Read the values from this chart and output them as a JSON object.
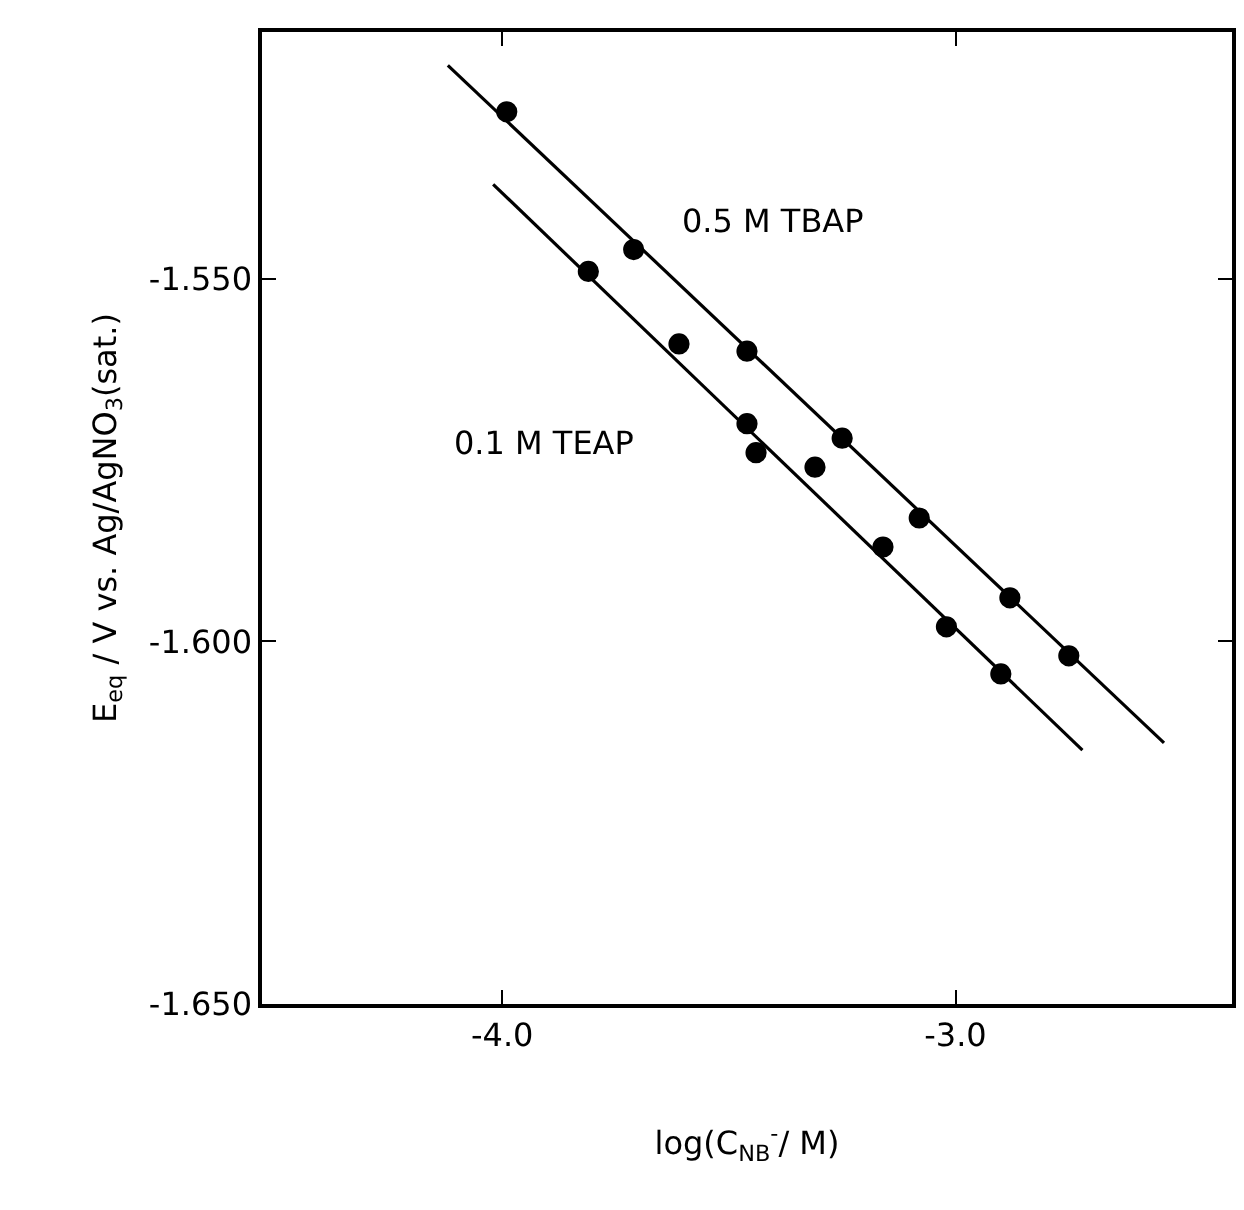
{
  "chart_data": {
    "type": "scatter",
    "xlabel": "log(C$_{NB}$$^{-}$/ M)",
    "ylabel": "E$_{eq}$ / V vs. Ag/AgNO$_{3}$(sat.)",
    "xlim": [
      -4.53,
      -2.39
    ],
    "ylim": [
      -1.65,
      -1.516
    ],
    "xticks": [
      {
        "value": -4,
        "label": "-4.0"
      },
      {
        "value": -3,
        "label": "-3.0"
      }
    ],
    "yticks": [
      {
        "value": -1.55,
        "label": "-1.550"
      },
      {
        "value": -1.6,
        "label": "-1.600"
      },
      {
        "value": -1.65,
        "label": "-1.650"
      }
    ],
    "grid": false,
    "legend": false,
    "series": [
      {
        "name": "0.5 M TBAP",
        "color": "#000000",
        "marker": "circle",
        "x": [
          -3.99,
          -3.71,
          -3.46,
          -3.25,
          -3.08,
          -2.88,
          -2.75
        ],
        "values": [
          -1.527,
          -1.546,
          -1.56,
          -1.572,
          -1.583,
          -1.594,
          -1.602
        ]
      },
      {
        "name": "0.1 M TEAP",
        "color": "#000000",
        "marker": "circle",
        "x": [
          -3.81,
          -3.61,
          -3.46,
          -3.44,
          -3.31,
          -3.16,
          -3.02,
          -2.9
        ],
        "values": [
          -1.549,
          -1.559,
          -1.57,
          -1.574,
          -1.576,
          -1.587,
          -1.598,
          -1.6045
        ]
      },
      {
        "type": "line",
        "color": "#000000",
        "marker": "none",
        "x": [
          -4.12,
          -2.54
        ],
        "values": [
          -1.5206,
          -1.614
        ]
      },
      {
        "type": "line",
        "color": "#000000",
        "marker": "none",
        "x": [
          -4.02,
          -2.72
        ],
        "values": [
          -1.537,
          -1.615
        ]
      }
    ]
  }
}
